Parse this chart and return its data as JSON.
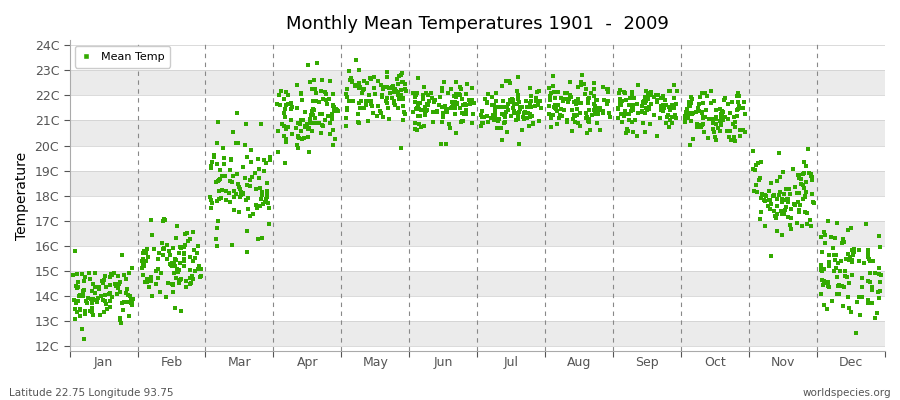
{
  "title": "Monthly Mean Temperatures 1901  -  2009",
  "ylabel": "Temperature",
  "xlabel_bottom_left": "Latitude 22.75 Longitude 93.75",
  "xlabel_bottom_right": "worldspecies.org",
  "legend_label": "Mean Temp",
  "ytick_labels": [
    "12C",
    "13C",
    "14C",
    "15C",
    "16C",
    "17C",
    "18C",
    "19C",
    "20C",
    "21C",
    "22C",
    "23C",
    "24C"
  ],
  "ytick_values": [
    12,
    13,
    14,
    15,
    16,
    17,
    18,
    19,
    20,
    21,
    22,
    23,
    24
  ],
  "ylim": [
    11.8,
    24.2
  ],
  "months": [
    "Jan",
    "Feb",
    "Mar",
    "Apr",
    "May",
    "Jun",
    "Jul",
    "Aug",
    "Sep",
    "Oct",
    "Nov",
    "Dec"
  ],
  "dot_color": "#33aa00",
  "bg_color": "#ffffff",
  "plot_bg_color_light": "#ffffff",
  "plot_bg_color_dark": "#ebebeb",
  "grid_color": "#cccccc",
  "dashed_vline_color": "#888888",
  "marker": "s",
  "marker_size": 2.5,
  "num_years": 109,
  "seed": 42,
  "mean_temps": [
    14.0,
    15.2,
    18.5,
    21.3,
    22.0,
    21.5,
    21.5,
    21.5,
    21.5,
    21.2,
    18.0,
    15.0
  ],
  "std_temps": [
    0.65,
    0.85,
    1.0,
    0.75,
    0.6,
    0.5,
    0.5,
    0.5,
    0.5,
    0.55,
    0.85,
    0.95
  ]
}
